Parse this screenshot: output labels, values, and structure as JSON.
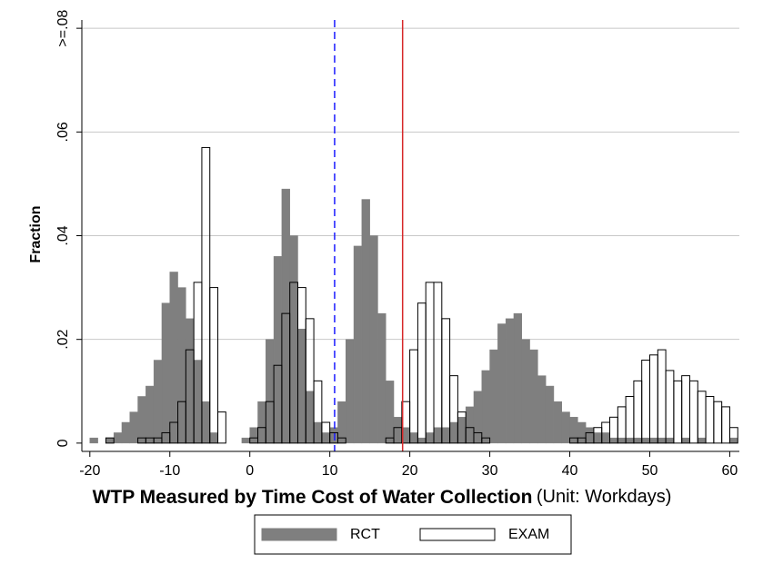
{
  "chart_data": {
    "type": "histogram",
    "x_label": "WTP Measured by Time Cost of Water Collection",
    "x_label_unit": "(Unit: Workdays)",
    "y_label": "Fraction",
    "bins": [
      -20,
      -19,
      -18,
      -17,
      -16,
      -15,
      -14,
      -13,
      -12,
      -11,
      -10,
      -9,
      -8,
      -7,
      -6,
      -5,
      -4,
      -3,
      -2,
      -1,
      0,
      1,
      2,
      3,
      4,
      5,
      6,
      7,
      8,
      9,
      10,
      11,
      12,
      13,
      14,
      15,
      16,
      17,
      18,
      19,
      20,
      21,
      22,
      23,
      24,
      25,
      26,
      27,
      28,
      29,
      30,
      31,
      32,
      33,
      34,
      35,
      36,
      37,
      38,
      39,
      40,
      41,
      42,
      43,
      44,
      45,
      46,
      47,
      48,
      49,
      50,
      51,
      52,
      53,
      54,
      55,
      56,
      57,
      58,
      59,
      60,
      61
    ],
    "series": [
      {
        "name": "RCT",
        "color": "#7f7f7f",
        "filled": true,
        "values": [
          0.001,
          0,
          0.001,
          0.002,
          0.004,
          0.006,
          0.009,
          0.011,
          0.016,
          0.027,
          0.033,
          0.03,
          0.024,
          0.016,
          0.008,
          0.002,
          0,
          0,
          0,
          0.001,
          0.003,
          0.008,
          0.02,
          0.036,
          0.049,
          0.04,
          0.022,
          0.01,
          0.004,
          0.002,
          0.003,
          0.008,
          0.02,
          0.038,
          0.047,
          0.04,
          0.025,
          0.012,
          0.005,
          0.003,
          0.002,
          0.001,
          0.002,
          0.003,
          0.003,
          0.004,
          0.005,
          0.007,
          0.01,
          0.014,
          0.018,
          0.023,
          0.024,
          0.025,
          0.02,
          0.018,
          0.013,
          0.011,
          0.008,
          0.006,
          0.005,
          0.004,
          0.003,
          0.002,
          0.002,
          0.001,
          0.001,
          0.001,
          0.001,
          0.001,
          0.001,
          0.001,
          0.001,
          0,
          0.001,
          0,
          0.001,
          0,
          0,
          0,
          0.001
        ]
      },
      {
        "name": "EXAM",
        "color": "#000000",
        "filled": false,
        "values": [
          0,
          0,
          0.001,
          0,
          0,
          0,
          0.001,
          0.001,
          0.001,
          0.002,
          0.004,
          0.008,
          0.018,
          0.031,
          0.057,
          0.03,
          0.006,
          0,
          0,
          0,
          0.001,
          0.003,
          0.008,
          0.015,
          0.025,
          0.031,
          0.03,
          0.024,
          0.012,
          0.004,
          0.002,
          0.001,
          0,
          0,
          0,
          0,
          0,
          0.001,
          0.003,
          0.008,
          0.018,
          0.027,
          0.031,
          0.031,
          0.024,
          0.013,
          0.006,
          0.003,
          0.002,
          0.001,
          0,
          0,
          0,
          0,
          0,
          0,
          0,
          0,
          0,
          0,
          0.001,
          0.001,
          0.002,
          0.003,
          0.004,
          0.005,
          0.007,
          0.009,
          0.012,
          0.016,
          0.017,
          0.018,
          0.014,
          0.012,
          0.013,
          0.012,
          0.01,
          0.009,
          0.008,
          0.007,
          0.003
        ]
      }
    ],
    "reference_lines": [
      {
        "value": 10.6,
        "color": "#1a1aff",
        "style": "dashed"
      },
      {
        "value": 19.1,
        "color": "#d62728",
        "style": "solid"
      }
    ],
    "xlim": [
      -21,
      61.2
    ],
    "xticks": [
      -20,
      -10,
      0,
      10,
      20,
      30,
      40,
      50,
      60
    ],
    "ylim": [
      -0.0016,
      0.0816
    ],
    "yticks": [
      0,
      {
        "value": 0.02,
        "label": ".02"
      },
      {
        "value": 0.04,
        "label": ".04"
      },
      {
        "value": 0.06,
        "label": ".06"
      },
      {
        "value": 0.08,
        "label": ">=.08"
      }
    ],
    "grid": true,
    "legend": "bottom"
  }
}
